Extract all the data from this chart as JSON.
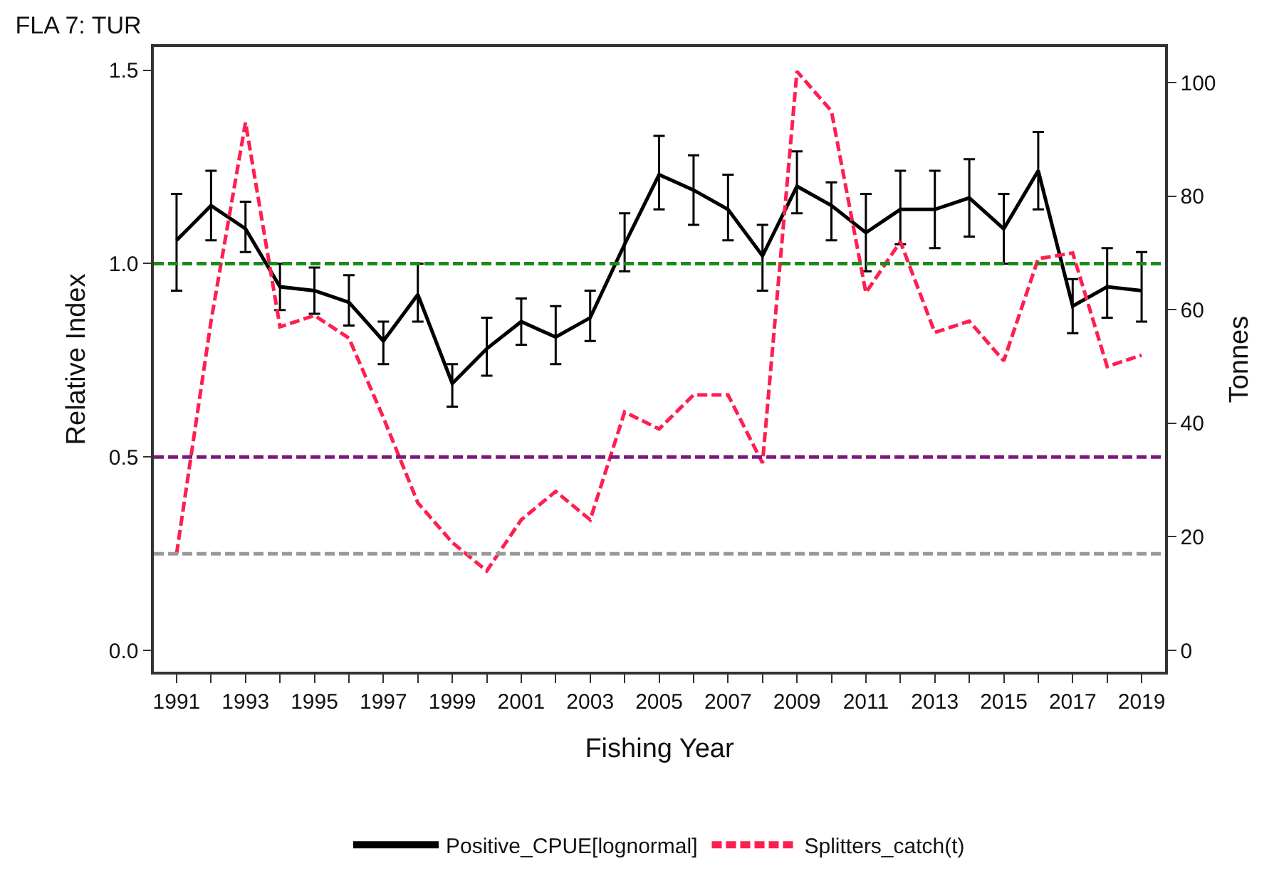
{
  "chart_data": {
    "type": "line",
    "title": "FLA 7: TUR",
    "xlabel": "Fishing Year",
    "ylabel": "Relative Index",
    "y2label": "Tonnes",
    "x": [
      1991,
      1992,
      1993,
      1994,
      1995,
      1996,
      1997,
      1998,
      1999,
      2000,
      2001,
      2002,
      2003,
      2004,
      2005,
      2006,
      2007,
      2008,
      2009,
      2010,
      2011,
      2012,
      2013,
      2014,
      2015,
      2016,
      2017,
      2018,
      2019
    ],
    "series": [
      {
        "name": "Positive_CPUE[lognormal]",
        "color": "#000000",
        "line_style": "solid",
        "values": [
          1.06,
          1.15,
          1.09,
          0.94,
          0.93,
          0.9,
          0.8,
          0.92,
          0.69,
          0.78,
          0.85,
          0.81,
          0.86,
          1.05,
          1.23,
          1.19,
          1.14,
          1.02,
          1.2,
          1.15,
          1.08,
          1.14,
          1.14,
          1.17,
          1.09,
          1.24,
          0.89,
          0.94,
          0.93
        ],
        "errors": [
          [
            0.93,
            1.18
          ],
          [
            1.06,
            1.24
          ],
          [
            1.03,
            1.16
          ],
          [
            0.88,
            1.0
          ],
          [
            0.87,
            0.99
          ],
          [
            0.84,
            0.97
          ],
          [
            0.74,
            0.85
          ],
          [
            0.85,
            1.0
          ],
          [
            0.63,
            0.74
          ],
          [
            0.71,
            0.86
          ],
          [
            0.79,
            0.91
          ],
          [
            0.74,
            0.89
          ],
          [
            0.8,
            0.93
          ],
          [
            0.98,
            1.13
          ],
          [
            1.14,
            1.33
          ],
          [
            1.1,
            1.28
          ],
          [
            1.06,
            1.23
          ],
          [
            0.93,
            1.1
          ],
          [
            1.13,
            1.29
          ],
          [
            1.06,
            1.21
          ],
          [
            0.98,
            1.18
          ],
          [
            1.05,
            1.24
          ],
          [
            1.04,
            1.24
          ],
          [
            1.07,
            1.27
          ],
          [
            1.0,
            1.18
          ],
          [
            1.14,
            1.34
          ],
          [
            0.82,
            0.96
          ],
          [
            0.86,
            1.04
          ],
          [
            0.85,
            1.03
          ]
        ]
      },
      {
        "name": "Splitters_catch(t)",
        "color": "#ff1f4f",
        "line_style": "dashed",
        "axis": "y2",
        "values": [
          17,
          58,
          93,
          57,
          59,
          55,
          41,
          26,
          19,
          14,
          23,
          28,
          23,
          42,
          39,
          45,
          45,
          33,
          102,
          95,
          63,
          72,
          56,
          58,
          51,
          69,
          70,
          50,
          52
        ]
      }
    ],
    "xlim": [
      1990.34,
      2019.68
    ],
    "xticks": [
      1991,
      {
        "value": 1992,
        "label": null
      },
      {
        "value": 1993,
        "label": "1993"
      },
      {
        "value": 1994,
        "label": null
      },
      1995,
      {
        "value": 1996,
        "label": null
      },
      {
        "value": 1997,
        "label": "1997"
      },
      {
        "value": 1998,
        "label": null
      },
      1999,
      {
        "value": 2000,
        "label": null
      },
      {
        "value": 2001,
        "label": "2001"
      },
      {
        "value": 2002,
        "label": null
      },
      2003,
      {
        "value": 2004,
        "label": null
      },
      {
        "value": 2005,
        "label": "2005"
      },
      {
        "value": 2006,
        "label": null
      },
      2007,
      {
        "value": 2008,
        "label": null
      },
      {
        "value": 2009,
        "label": "2009"
      },
      {
        "value": 2010,
        "label": null
      },
      2011,
      {
        "value": 2012,
        "label": null
      },
      {
        "value": 2013,
        "label": "2013"
      },
      {
        "value": 2014,
        "label": null
      },
      2015,
      {
        "value": 2016,
        "label": null
      },
      {
        "value": 2017,
        "label": "2017"
      },
      {
        "value": 2018,
        "label": null
      },
      2019
    ],
    "ylim": [
      -0.055,
      1.56
    ],
    "yticks": [
      {
        "value": 0,
        "label": "0.0"
      },
      0.5,
      {
        "value": 1,
        "label": "1.0"
      },
      1.5
    ],
    "y2lim": [
      -3.76,
      106.3
    ],
    "y2ticks": [
      0,
      20,
      40,
      60,
      80,
      100
    ],
    "ref_lines": [
      {
        "axis": "y",
        "value": 1,
        "color": "#1a8a1a",
        "line_style": "dashed"
      },
      {
        "axis": "y",
        "value": 0.5,
        "color": "#7a1a7a",
        "line_style": "dashed"
      },
      {
        "axis": "y",
        "value": 0.25,
        "color": "#999999",
        "line_style": "dashed"
      }
    ],
    "grid": false,
    "legend": "bottom",
    "marker": "none"
  }
}
